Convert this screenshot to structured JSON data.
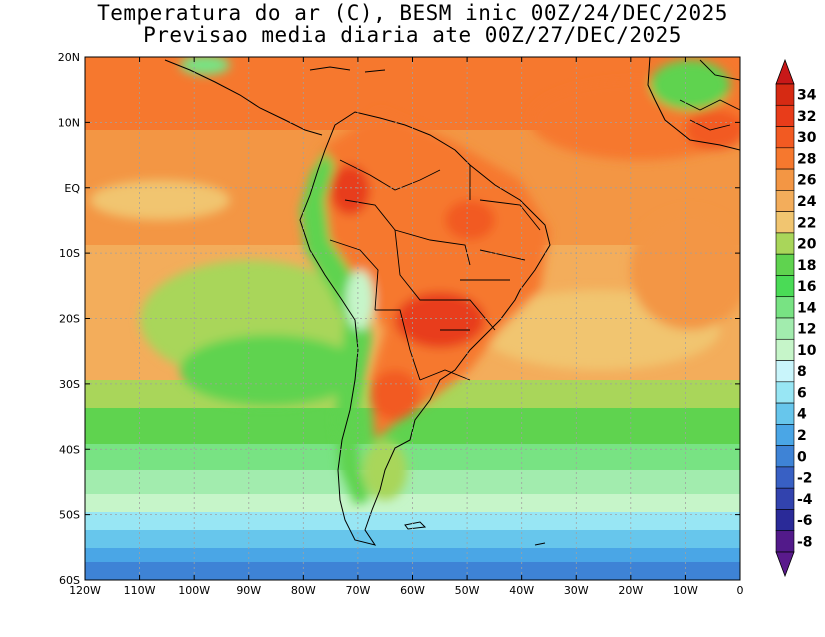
{
  "title": {
    "line1": "Temperatura do ar (C), BESM inic 00Z/24/DEC/2025",
    "line2": "Previsao media diaria ate 00Z/27/DEC/2025"
  },
  "map_axes": {
    "lon_labels": [
      "120W",
      "110W",
      "100W",
      "90W",
      "80W",
      "70W",
      "60W",
      "50W",
      "40W",
      "30W",
      "20W",
      "10W",
      "0"
    ],
    "lat_labels": [
      "20N",
      "10N",
      "EQ",
      "10S",
      "20S",
      "30S",
      "40S",
      "50S",
      "60S"
    ]
  },
  "colorbar": {
    "labels": [
      "34",
      "32",
      "30",
      "28",
      "26",
      "24",
      "22",
      "20",
      "18",
      "16",
      "14",
      "12",
      "10",
      "8",
      "6",
      "4",
      "2",
      "0",
      "-2",
      "-4",
      "-6",
      "-8"
    ],
    "colors": [
      "#d62a13",
      "#e83c1a",
      "#f25a22",
      "#f6782e",
      "#f39644",
      "#f3ad5b",
      "#f1c570",
      "#a9d65a",
      "#5fd34f",
      "#4adb56",
      "#78e383",
      "#a2ecae",
      "#c6f5c9",
      "#c9f5fb",
      "#98e6f4",
      "#67c6ec",
      "#4aa6e6",
      "#3e83d6",
      "#3860c4",
      "#3243ae",
      "#2a2a98",
      "#521a8a"
    ],
    "top_arrow_color": "#c81818",
    "bottom_arrow_color": "#5a1a8c"
  }
}
